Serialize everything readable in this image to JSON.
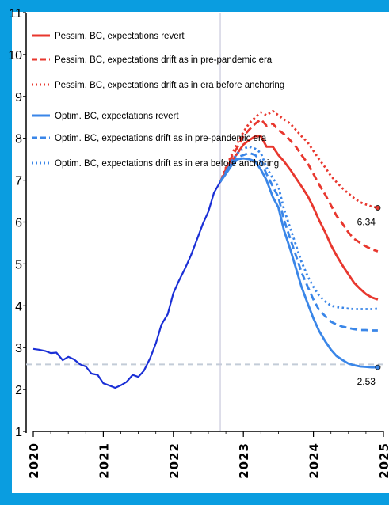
{
  "chart_data": {
    "type": "line",
    "title": "",
    "xlabel": "",
    "ylabel": "",
    "xlim": [
      2020,
      2025
    ],
    "ylim": [
      1,
      11
    ],
    "y_ticks": [
      "1",
      "2",
      "3",
      "4",
      "5",
      "6",
      "7",
      "8",
      "9",
      "10",
      "11"
    ],
    "x_ticks": [
      "2020",
      "2021",
      "2022",
      "2023",
      "2024",
      "2025"
    ],
    "grid": false,
    "legend_position": "top-left",
    "vertical_line_x": 2022.67,
    "reference_line_y": 2.6,
    "history": {
      "color": "#1a2fd6",
      "x": [
        2020.0,
        2020.08,
        2020.17,
        2020.25,
        2020.33,
        2020.42,
        2020.5,
        2020.58,
        2020.67,
        2020.75,
        2020.83,
        2020.92,
        2021.0,
        2021.08,
        2021.17,
        2021.25,
        2021.33,
        2021.42,
        2021.5,
        2021.58,
        2021.67,
        2021.75,
        2021.83,
        2021.92,
        2022.0,
        2022.08,
        2022.17,
        2022.25,
        2022.33,
        2022.42,
        2022.5,
        2022.58,
        2022.67
      ],
      "y": [
        2.97,
        2.95,
        2.92,
        2.87,
        2.88,
        2.7,
        2.78,
        2.72,
        2.6,
        2.55,
        2.38,
        2.35,
        2.15,
        2.1,
        2.04,
        2.1,
        2.18,
        2.35,
        2.3,
        2.45,
        2.75,
        3.1,
        3.55,
        3.8,
        4.3,
        4.6,
        4.9,
        5.2,
        5.55,
        5.95,
        6.25,
        6.7,
        6.96
      ]
    },
    "series": [
      {
        "name": "Pessim. BC, expectations revert",
        "color": "#e8372e",
        "dash": "solid",
        "x": [
          2022.67,
          2022.75,
          2022.83,
          2022.92,
          2023.0,
          2023.08,
          2023.17,
          2023.25,
          2023.33,
          2023.42,
          2023.5,
          2023.58,
          2023.67,
          2023.75,
          2023.83,
          2023.92,
          2024.0,
          2024.08,
          2024.17,
          2024.25,
          2024.33,
          2024.42,
          2024.5,
          2024.58,
          2024.67,
          2024.75,
          2024.83,
          2024.92
        ],
        "y": [
          6.96,
          7.2,
          7.45,
          7.65,
          7.85,
          7.95,
          8.05,
          8.05,
          7.8,
          7.8,
          7.6,
          7.45,
          7.25,
          7.05,
          6.85,
          6.62,
          6.35,
          6.05,
          5.75,
          5.45,
          5.2,
          4.95,
          4.75,
          4.55,
          4.4,
          4.28,
          4.2,
          4.15
        ]
      },
      {
        "name": "Pessim. BC, expectations drift as in pre-pandemic era",
        "color": "#e8372e",
        "dash": "dashed",
        "x": [
          2022.67,
          2022.75,
          2022.83,
          2022.92,
          2023.0,
          2023.08,
          2023.17,
          2023.25,
          2023.33,
          2023.42,
          2023.5,
          2023.58,
          2023.67,
          2023.75,
          2023.83,
          2023.92,
          2024.0,
          2024.08,
          2024.17,
          2024.25,
          2024.33,
          2024.42,
          2024.5,
          2024.58,
          2024.67,
          2024.75,
          2024.83,
          2024.92
        ],
        "y": [
          6.96,
          7.25,
          7.55,
          7.8,
          8.05,
          8.2,
          8.35,
          8.45,
          8.3,
          8.35,
          8.2,
          8.1,
          7.95,
          7.8,
          7.6,
          7.4,
          7.15,
          6.9,
          6.65,
          6.4,
          6.15,
          5.95,
          5.75,
          5.6,
          5.5,
          5.42,
          5.35,
          5.3
        ]
      },
      {
        "name": "Pessim. BC, expectations drift as in era before anchoring",
        "color": "#e8372e",
        "dash": "dotted",
        "x": [
          2022.67,
          2022.75,
          2022.83,
          2022.92,
          2023.0,
          2023.08,
          2023.17,
          2023.25,
          2023.33,
          2023.42,
          2023.5,
          2023.58,
          2023.67,
          2023.75,
          2023.83,
          2023.92,
          2024.0,
          2024.08,
          2024.17,
          2024.25,
          2024.33,
          2024.42,
          2024.5,
          2024.58,
          2024.67,
          2024.75,
          2024.83,
          2024.92
        ],
        "y": [
          6.96,
          7.3,
          7.6,
          7.9,
          8.15,
          8.35,
          8.5,
          8.62,
          8.55,
          8.65,
          8.55,
          8.45,
          8.35,
          8.2,
          8.05,
          7.9,
          7.7,
          7.5,
          7.3,
          7.1,
          6.95,
          6.8,
          6.68,
          6.57,
          6.47,
          6.42,
          6.37,
          6.34
        ]
      },
      {
        "name": "Optim. BC, expectations revert",
        "color": "#3a86e8",
        "dash": "solid",
        "x": [
          2022.67,
          2022.75,
          2022.83,
          2022.92,
          2023.0,
          2023.08,
          2023.17,
          2023.25,
          2023.33,
          2023.42,
          2023.5,
          2023.58,
          2023.67,
          2023.75,
          2023.83,
          2023.92,
          2024.0,
          2024.08,
          2024.17,
          2024.25,
          2024.33,
          2024.42,
          2024.5,
          2024.58,
          2024.67,
          2024.75,
          2024.83,
          2024.92
        ],
        "y": [
          6.96,
          7.15,
          7.35,
          7.5,
          7.52,
          7.5,
          7.45,
          7.25,
          7.0,
          6.6,
          6.35,
          5.8,
          5.35,
          4.9,
          4.45,
          4.05,
          3.7,
          3.4,
          3.15,
          2.95,
          2.8,
          2.7,
          2.62,
          2.58,
          2.55,
          2.54,
          2.53,
          2.53
        ]
      },
      {
        "name": "Optim. BC, expectations drift as in pre-pandemic era",
        "color": "#3a86e8",
        "dash": "dashed",
        "x": [
          2022.67,
          2022.75,
          2022.83,
          2022.92,
          2023.0,
          2023.08,
          2023.17,
          2023.25,
          2023.33,
          2023.42,
          2023.5,
          2023.58,
          2023.67,
          2023.75,
          2023.83,
          2023.92,
          2024.0,
          2024.08,
          2024.17,
          2024.25,
          2024.33,
          2024.42,
          2024.5,
          2024.58,
          2024.67,
          2024.75,
          2024.83,
          2024.92
        ],
        "y": [
          6.96,
          7.2,
          7.4,
          7.55,
          7.6,
          7.65,
          7.6,
          7.45,
          7.15,
          6.85,
          6.6,
          6.05,
          5.6,
          5.2,
          4.8,
          4.45,
          4.15,
          3.9,
          3.75,
          3.62,
          3.55,
          3.5,
          3.47,
          3.44,
          3.42,
          3.42,
          3.41,
          3.41
        ]
      },
      {
        "name": "Optim. BC, expectations drift as in era before anchoring",
        "color": "#3a86e8",
        "dash": "dotted",
        "x": [
          2022.67,
          2022.75,
          2022.83,
          2022.92,
          2023.0,
          2023.08,
          2023.17,
          2023.25,
          2023.33,
          2023.42,
          2023.5,
          2023.58,
          2023.67,
          2023.75,
          2023.83,
          2023.92,
          2024.0,
          2024.08,
          2024.17,
          2024.25,
          2024.33,
          2024.42,
          2024.5,
          2024.58,
          2024.67,
          2024.75,
          2024.83,
          2024.92
        ],
        "y": [
          6.96,
          7.2,
          7.45,
          7.65,
          7.75,
          7.8,
          7.75,
          7.65,
          7.3,
          7.05,
          6.85,
          6.3,
          5.85,
          5.45,
          5.05,
          4.7,
          4.45,
          4.25,
          4.1,
          4.0,
          3.97,
          3.95,
          3.93,
          3.92,
          3.92,
          3.92,
          3.92,
          3.93
        ]
      }
    ],
    "end_labels": [
      {
        "text": "6.34",
        "value": 6.34,
        "x": 2024.92
      },
      {
        "text": "2.53",
        "value": 2.53,
        "x": 2024.92
      }
    ]
  }
}
